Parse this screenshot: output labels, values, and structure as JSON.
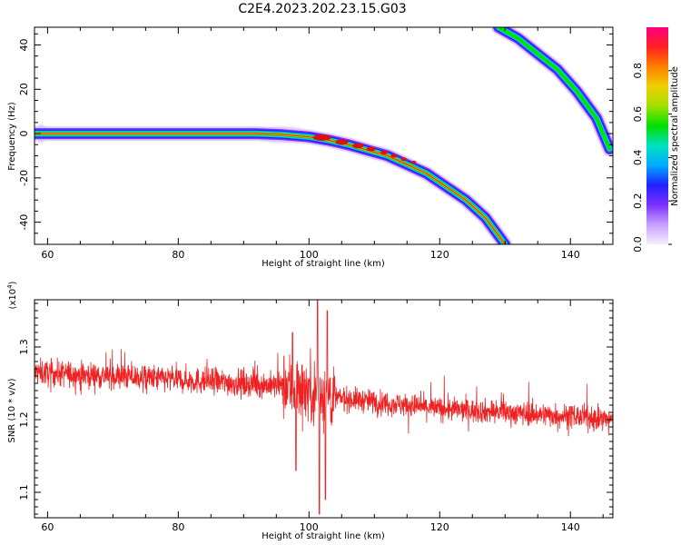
{
  "title": "C2E4.2023.202.23.15.G03",
  "colors": {
    "snr_line": "#ee2222",
    "ridge_core": "#dd1111",
    "background": "#ffffff",
    "colormap": [
      "#f5f0ff",
      "#c8a0ff",
      "#7a30ff",
      "#2020ff",
      "#00aaff",
      "#00e0c0",
      "#00e000",
      "#a0e000",
      "#f0d000",
      "#ff8000",
      "#ff2020",
      "#ff0080"
    ]
  },
  "chart_data": [
    {
      "type": "heatmap",
      "name": "spectrogram",
      "xlabel": "Height of straight line (km)",
      "ylabel": "Frequency (Hz)",
      "xlim": [
        58,
        146.5
      ],
      "ylim": [
        -50,
        48
      ],
      "x_ticks": [
        60,
        80,
        100,
        120,
        140
      ],
      "y_ticks": [
        -40,
        -20,
        0,
        20,
        40
      ],
      "grid": false,
      "ridges": [
        {
          "label": "main",
          "points": [
            [
              58,
              0
            ],
            [
              92,
              0
            ],
            [
              96,
              -0.5
            ],
            [
              100,
              -1.5
            ],
            [
              103,
              -3
            ],
            [
              106,
              -5
            ],
            [
              109,
              -7.5
            ],
            [
              112,
              -10
            ],
            [
              115,
              -14
            ],
            [
              118,
              -18
            ],
            [
              121,
              -24
            ],
            [
              124,
              -30
            ],
            [
              127,
              -38
            ],
            [
              130,
              -50
            ]
          ]
        },
        {
          "label": "upper",
          "points": [
            [
              129,
              48
            ],
            [
              132,
              43
            ],
            [
              135,
              36
            ],
            [
              138,
              29
            ],
            [
              141,
              19
            ],
            [
              144,
              7
            ],
            [
              146,
              -7
            ]
          ]
        }
      ],
      "colorbar": {
        "label": "Normalized spectral amplitude",
        "range": [
          0,
          1
        ],
        "ticks": [
          "0.0",
          "0.2",
          "0.4",
          "0.6",
          "0.8"
        ]
      }
    },
    {
      "type": "line",
      "name": "snr",
      "xlabel": "Height of straight line (km)",
      "ylabel": "SNR (10 * v/v)",
      "multiplier": "(x10",
      "multiplier_exp": "4",
      "multiplier_close": ")",
      "xlim": [
        58,
        146.5
      ],
      "ylim": [
        1.065,
        1.365
      ],
      "x_ticks": [
        60,
        80,
        100,
        120,
        140
      ],
      "y_ticks": [
        1.1,
        1.2,
        1.3
      ],
      "grid": false,
      "series": [
        {
          "values_envelope": [
            [
              58,
              1.265
            ],
            [
              70,
              1.26
            ],
            [
              80,
              1.255
            ],
            [
              90,
              1.25
            ],
            [
              98,
              1.245
            ],
            [
              104,
              1.23
            ],
            [
              110,
              1.225
            ],
            [
              120,
              1.215
            ],
            [
              130,
              1.21
            ],
            [
              140,
              1.205
            ],
            [
              146,
              1.2
            ]
          ]
        }
      ],
      "spikes": [
        [
          101.3,
          1.365
        ],
        [
          101.6,
          1.07
        ],
        [
          102.5,
          1.09
        ],
        [
          102.8,
          1.35
        ],
        [
          98,
          1.13
        ],
        [
          97.5,
          1.32
        ]
      ]
    }
  ]
}
